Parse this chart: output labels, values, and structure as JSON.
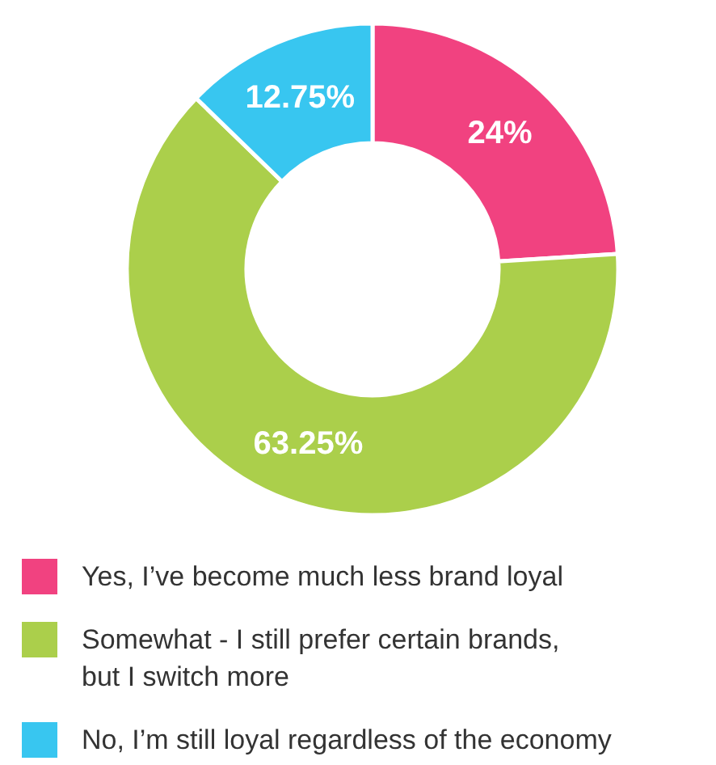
{
  "chart_data": {
    "type": "donut",
    "categories": [
      "Yes, I’ve become much less brand loyal",
      "Somewhat - I still prefer certain brands, but I switch more",
      "No, I’m still loyal regardless of the economy"
    ],
    "values": [
      24,
      63.25,
      12.75
    ],
    "colors": [
      "#f14280",
      "#abcf4b",
      "#38c6f0"
    ],
    "value_labels": [
      "24%",
      "63.25%",
      "12.75%"
    ],
    "legend": "bottom"
  }
}
